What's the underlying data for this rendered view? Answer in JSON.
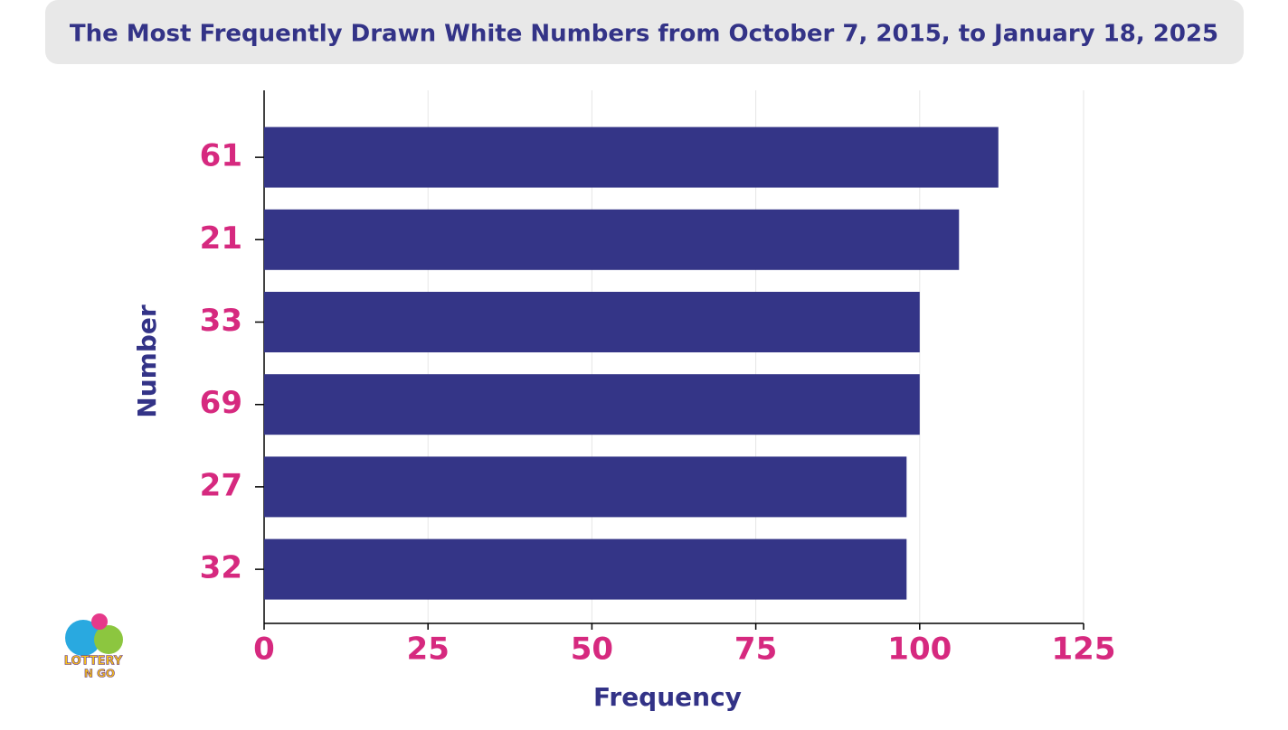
{
  "chart_data": {
    "type": "barh",
    "title": "The Most Frequently Drawn White Numbers from October 7, 2015, to January 18, 2025",
    "x_label": "Frequency",
    "y_label": "Number",
    "categories": [
      "61",
      "21",
      "33",
      "69",
      "27",
      "32"
    ],
    "values": [
      112,
      106,
      100,
      100,
      98,
      98
    ],
    "color": "#343587",
    "xlim": [
      0,
      125
    ],
    "xticks": [
      0,
      25,
      50,
      75,
      100,
      125
    ],
    "grid": true
  },
  "logo": [
    "LOTTERY",
    "N GO"
  ]
}
